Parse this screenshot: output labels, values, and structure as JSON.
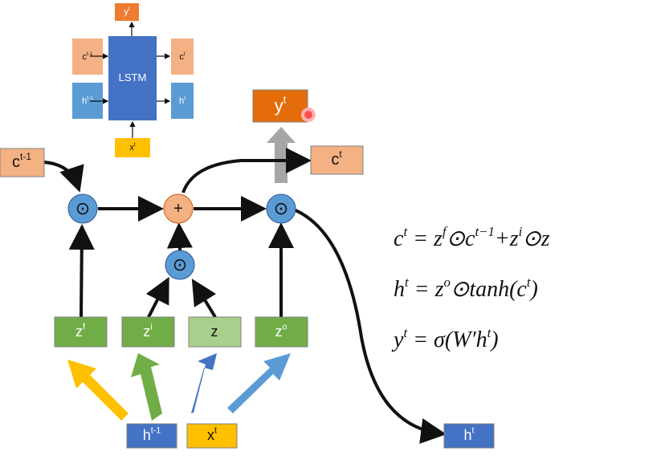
{
  "mini": {
    "y": {
      "base": "y",
      "sup": "t"
    },
    "c_prev": {
      "base": "c",
      "sup": "t-1"
    },
    "cell": {
      "base": "LSTM"
    },
    "c": {
      "base": "c",
      "sup": "t"
    },
    "h_prev": {
      "base": "h",
      "sup": "t-1"
    },
    "h": {
      "base": "h",
      "sup": "t"
    },
    "x": {
      "base": "x",
      "sup": "t"
    }
  },
  "nodes": {
    "c_prev": {
      "base": "c",
      "sup": "t-1"
    },
    "y": {
      "base": "y",
      "sup": "t"
    },
    "c": {
      "base": "c",
      "sup": "t"
    },
    "mul_forget": {
      "base": "⊙"
    },
    "add": {
      "base": "+"
    },
    "mul_out": {
      "base": "⊙"
    },
    "mul_in": {
      "base": "⊙"
    },
    "zf": {
      "base": "z",
      "sup": "f"
    },
    "zi": {
      "base": "z",
      "sup": "i"
    },
    "z": {
      "base": "z"
    },
    "zo": {
      "base": "z",
      "sup": "o"
    },
    "h_prev": {
      "base": "h",
      "sup": "t-1"
    },
    "x": {
      "base": "x",
      "sup": "t"
    },
    "h": {
      "base": "h",
      "sup": "t"
    }
  },
  "equations": [
    [
      {
        "base": "c",
        "sup": "t"
      },
      {
        "base": " = z",
        "sup": "f"
      },
      {
        "base": "⊙c",
        "sup": "t−1"
      },
      {
        "base": "+z",
        "sup": "i"
      },
      {
        "base": "⊙z"
      }
    ],
    [
      {
        "base": "h",
        "sup": "t"
      },
      {
        "base": " = z",
        "sup": "o"
      },
      {
        "base": "⊙tanh(c",
        "sup": "t"
      },
      {
        "base": ")"
      }
    ],
    [
      {
        "base": "y",
        "sup": "t"
      },
      {
        "base": " = σ(W′h",
        "sup": "t"
      },
      {
        "base": ")"
      }
    ]
  ]
}
